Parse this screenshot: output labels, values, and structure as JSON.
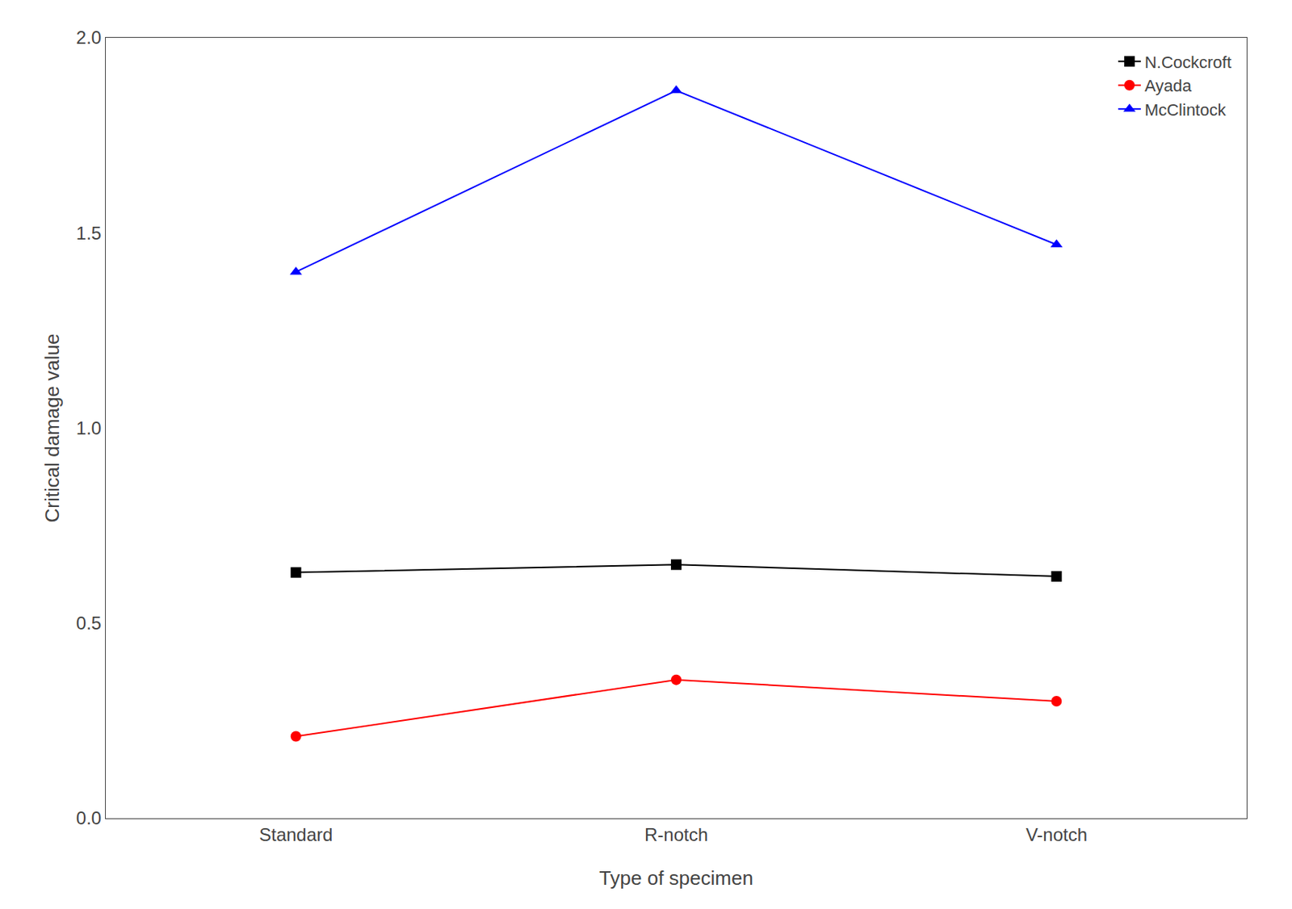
{
  "chart_data": {
    "type": "line",
    "xlabel": "Type of specimen",
    "ylabel": "Critical damage value",
    "categories": [
      "Standard",
      "R-notch",
      "V-notch"
    ],
    "series": [
      {
        "name": "N.Cockcroft",
        "color": "#000000",
        "marker": "square",
        "values": [
          0.63,
          0.65,
          0.62
        ]
      },
      {
        "name": "Ayada",
        "color": "#ff0000",
        "marker": "circle",
        "values": [
          0.21,
          0.355,
          0.3
        ]
      },
      {
        "name": "McClintock",
        "color": "#0000ff",
        "marker": "triangle-up",
        "values": [
          1.4,
          1.865,
          1.47
        ]
      }
    ],
    "ylim": [
      0.0,
      2.0
    ],
    "yticks": [
      {
        "value": 0.0,
        "label": "0.0"
      },
      0.5,
      {
        "value": 1.0,
        "label": "1.0"
      },
      1.5,
      {
        "value": 2.0,
        "label": "2.0"
      }
    ],
    "grid": false,
    "legend": "upper right"
  }
}
